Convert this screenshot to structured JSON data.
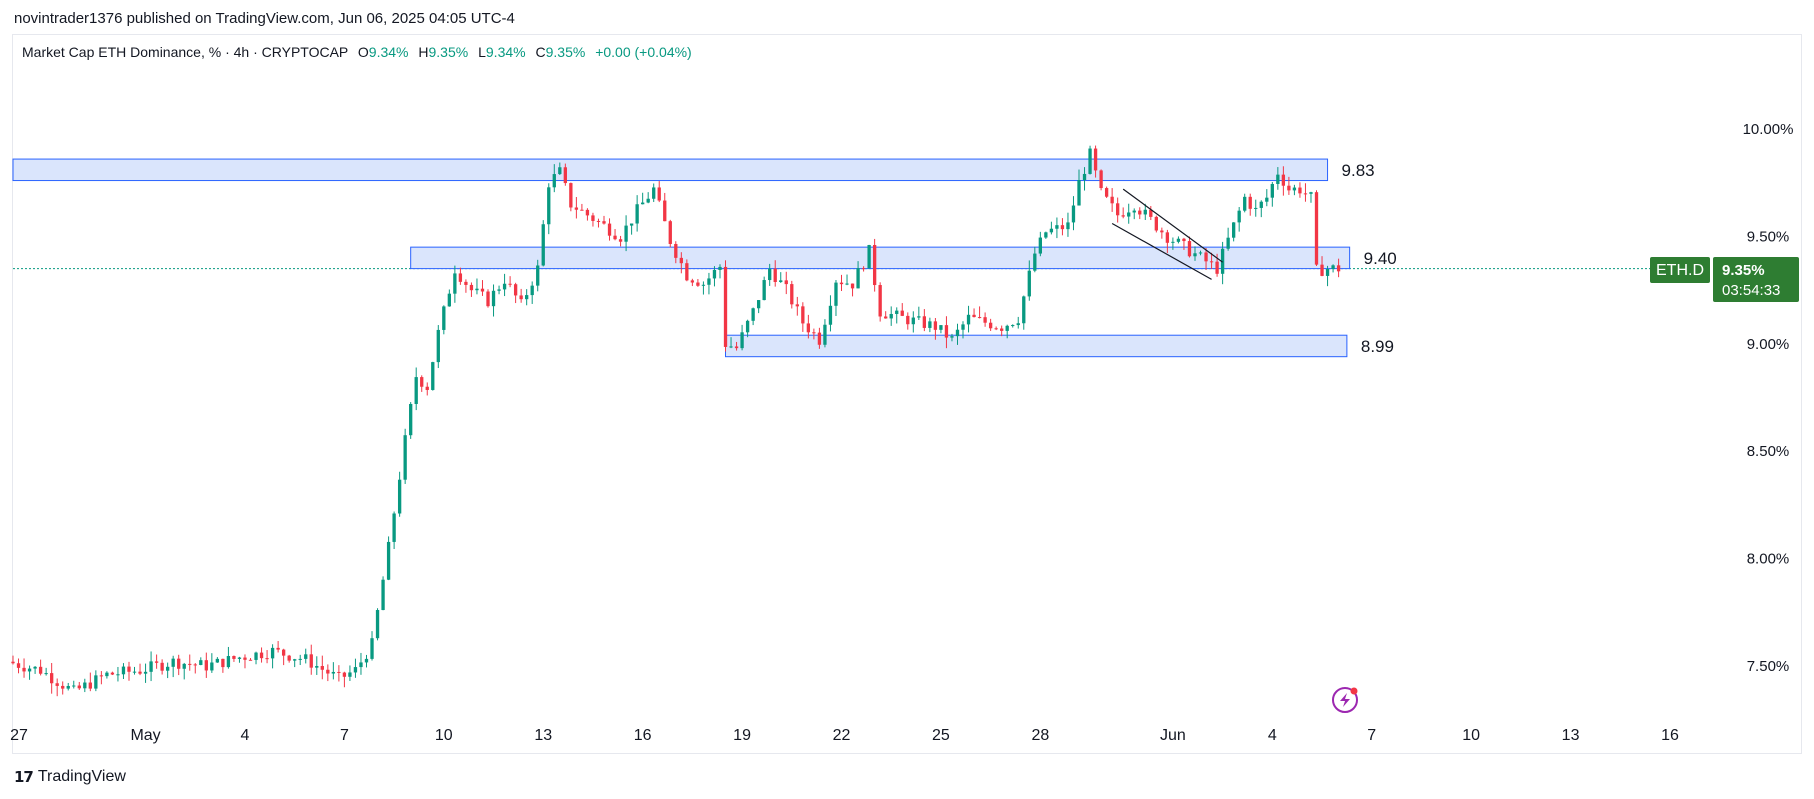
{
  "publish": {
    "text": "novintrader1376 published on TradingView.com, Jun 06, 2025 04:05 UTC-4"
  },
  "legend": {
    "symbol": "Market Cap ETH Dominance, % · 4h · CRYPTOCAP",
    "o_label": "O",
    "o_value": "9.34%",
    "h_label": "H",
    "h_value": "9.35%",
    "l_label": "L",
    "l_value": "9.34%",
    "c_label": "C",
    "c_value": "9.35%",
    "change": "+0.00 (+0.04%)"
  },
  "badge": {
    "ticker": "ETH.D",
    "price": "9.35%",
    "countdown": "03:54:33"
  },
  "footer": {
    "logo": "17",
    "brand": "TradingView"
  },
  "colors": {
    "up": "#089981",
    "down": "#f23645",
    "zone_fill": "#d4e0fb",
    "zone_stroke": "#2962ff",
    "price_line": "#089981",
    "badge": "#2e7d32"
  },
  "chart_data": {
    "type": "candlestick",
    "interval": "4h",
    "y_unit": "%",
    "ylim": [
      7.3,
      10.2
    ],
    "y_ticks": [
      "10.00%",
      "9.50%",
      "9.00%",
      "8.50%",
      "8.00%",
      "7.50%"
    ],
    "y_tick_values": [
      10.0,
      9.5,
      9.0,
      8.5,
      8.0,
      7.5
    ],
    "x_tick_labels": [
      "27",
      "May",
      "4",
      "7",
      "10",
      "13",
      "16",
      "19",
      "22",
      "25",
      "28",
      "Jun",
      "4",
      "7",
      "10",
      "13",
      "16"
    ],
    "x_tick_dates": [
      "2025-04-27",
      "2025-05-01",
      "2025-05-04",
      "2025-05-07",
      "2025-05-10",
      "2025-05-13",
      "2025-05-16",
      "2025-05-19",
      "2025-05-22",
      "2025-05-25",
      "2025-05-28",
      "2025-06-01",
      "2025-06-04",
      "2025-06-07",
      "2025-06-10",
      "2025-06-13",
      "2025-06-16"
    ],
    "last_price": 9.35,
    "price_path": [
      [
        "2025-04-27",
        7.52
      ],
      [
        "2025-04-28",
        7.48
      ],
      [
        "2025-04-29",
        7.38
      ],
      [
        "2025-04-30",
        7.46
      ],
      [
        "2025-05-01",
        7.48
      ],
      [
        "2025-05-02",
        7.52
      ],
      [
        "2025-05-03",
        7.5
      ],
      [
        "2025-05-04",
        7.54
      ],
      [
        "2025-05-05",
        7.57
      ],
      [
        "2025-05-06",
        7.53
      ],
      [
        "2025-05-07",
        7.44
      ],
      [
        "2025-05-07T12:00",
        7.48
      ],
      [
        "2025-05-08",
        7.6
      ],
      [
        "2025-05-08T12:00",
        8.05
      ],
      [
        "2025-05-09",
        8.55
      ],
      [
        "2025-05-09T08:00",
        8.85
      ],
      [
        "2025-05-09T16:00",
        8.8
      ],
      [
        "2025-05-10",
        9.05
      ],
      [
        "2025-05-10T12:00",
        9.35
      ],
      [
        "2025-05-11",
        9.25
      ],
      [
        "2025-05-11T12:00",
        9.2
      ],
      [
        "2025-05-12",
        9.3
      ],
      [
        "2025-05-12T12:00",
        9.18
      ],
      [
        "2025-05-13",
        9.35
      ],
      [
        "2025-05-13T08:00",
        9.75
      ],
      [
        "2025-05-13T16:00",
        9.8
      ],
      [
        "2025-05-14",
        9.65
      ],
      [
        "2025-05-14T12:00",
        9.6
      ],
      [
        "2025-05-15",
        9.55
      ],
      [
        "2025-05-15T12:00",
        9.5
      ],
      [
        "2025-05-16",
        9.62
      ],
      [
        "2025-05-16T12:00",
        9.72
      ],
      [
        "2025-05-17",
        9.48
      ],
      [
        "2025-05-17T12:00",
        9.32
      ],
      [
        "2025-05-18",
        9.28
      ],
      [
        "2025-05-18T12:00",
        9.36
      ],
      [
        "2025-05-18T16:00",
        9.0
      ],
      [
        "2025-05-19",
        8.98
      ],
      [
        "2025-05-19T12:00",
        9.15
      ],
      [
        "2025-05-20",
        9.35
      ],
      [
        "2025-05-20T12:00",
        9.25
      ],
      [
        "2025-05-21",
        9.1
      ],
      [
        "2025-05-21T12:00",
        9.02
      ],
      [
        "2025-05-22",
        9.3
      ],
      [
        "2025-05-22T12:00",
        9.28
      ],
      [
        "2025-05-23",
        9.43
      ],
      [
        "2025-05-23T08:00",
        9.15
      ],
      [
        "2025-05-24",
        9.12
      ],
      [
        "2025-05-25",
        9.08
      ],
      [
        "2025-05-25T12:00",
        9.02
      ],
      [
        "2025-05-26",
        9.12
      ],
      [
        "2025-05-27",
        9.08
      ],
      [
        "2025-05-27T12:00",
        9.12
      ],
      [
        "2025-05-28",
        9.42
      ],
      [
        "2025-05-28T08:00",
        9.52
      ],
      [
        "2025-05-29",
        9.55
      ],
      [
        "2025-05-29T08:00",
        9.75
      ],
      [
        "2025-05-29T16:00",
        9.88
      ],
      [
        "2025-05-30",
        9.7
      ],
      [
        "2025-05-30T12:00",
        9.6
      ],
      [
        "2025-05-31",
        9.65
      ],
      [
        "2025-06-01",
        9.5
      ],
      [
        "2025-06-01T12:00",
        9.45
      ],
      [
        "2025-06-02",
        9.4
      ],
      [
        "2025-06-02T12:00",
        9.35
      ],
      [
        "2025-06-03",
        9.55
      ],
      [
        "2025-06-03T08:00",
        9.68
      ],
      [
        "2025-06-03T16:00",
        9.62
      ],
      [
        "2025-06-04",
        9.68
      ],
      [
        "2025-06-04T08:00",
        9.8
      ],
      [
        "2025-06-04T16:00",
        9.72
      ],
      [
        "2025-06-05",
        9.72
      ],
      [
        "2025-06-05T08:00",
        9.68
      ],
      [
        "2025-06-05T12:00",
        9.34
      ],
      [
        "2025-06-05T20:00",
        9.35
      ],
      [
        "2025-06-06",
        9.35
      ]
    ],
    "zones": [
      {
        "label": "9.83",
        "low": 9.76,
        "high": 9.86,
        "from": "2025-04-27",
        "to": "2025-06-05T16:00"
      },
      {
        "label": "9.40",
        "low": 9.35,
        "high": 9.45,
        "from": "2025-05-09",
        "to": "2025-06-06T08:00"
      },
      {
        "label": "8.99",
        "low": 8.94,
        "high": 9.04,
        "from": "2025-05-18T12:00",
        "to": "2025-06-06T06:00"
      }
    ],
    "channel_lines": [
      [
        [
          "2025-05-30T12:00",
          9.72
        ],
        [
          "2025-06-02T12:00",
          9.38
        ]
      ],
      [
        [
          "2025-05-30T04:00",
          9.56
        ],
        [
          "2025-06-02T04:00",
          9.3
        ]
      ]
    ]
  }
}
